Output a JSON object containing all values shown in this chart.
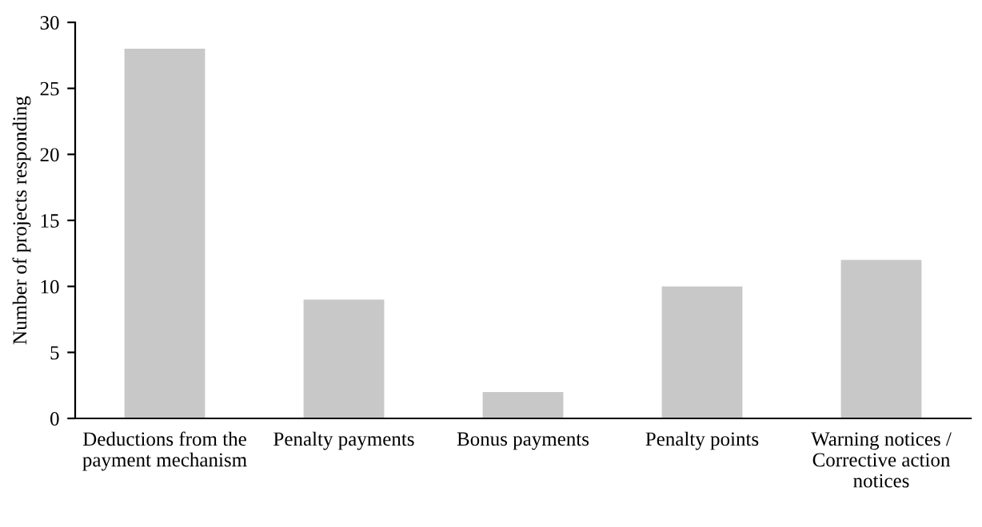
{
  "chart_data": {
    "type": "bar",
    "ylabel": "Number of projects responding",
    "categories": [
      "Deductions from the\npayment mechanism",
      "Penalty payments",
      "Bonus payments",
      "Penalty points",
      "Warning notices /\nCorrective action\nnotices"
    ],
    "values": [
      28,
      9,
      2,
      10,
      12
    ],
    "color": "#c8c8c8",
    "ylim": [
      0,
      30
    ],
    "yticks": [
      0,
      5,
      10,
      15,
      20,
      25,
      30
    ],
    "grid": false,
    "legend": false
  }
}
